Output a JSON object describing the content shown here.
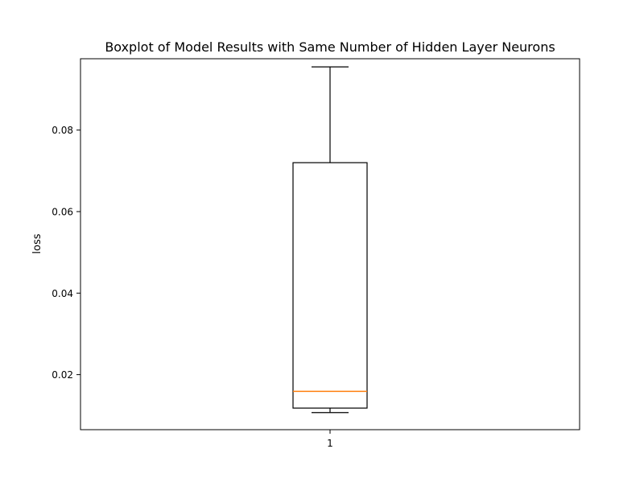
{
  "chart_data": {
    "type": "boxplot",
    "title": "Boxplot of Model Results with Same Number of Hidden Layer Neurons",
    "xlabel": "",
    "ylabel": "loss",
    "categories": [
      "1"
    ],
    "ylim": [
      0.0065,
      0.0975
    ],
    "yticks": [
      0.02,
      0.04,
      0.06,
      0.08
    ],
    "ytick_labels": [
      "0.02",
      "0.04",
      "0.06",
      "0.08"
    ],
    "grid": false,
    "boxes": [
      {
        "category": "1",
        "whisker_low": 0.0107,
        "q1": 0.0118,
        "median": 0.0159,
        "q3": 0.072,
        "whisker_high": 0.0955
      }
    ],
    "colors": {
      "box": "#000000",
      "median": "#ff7f0e"
    }
  }
}
